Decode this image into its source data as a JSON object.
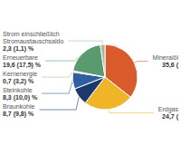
{
  "chart_data": {
    "type": "pie",
    "categories": [
      "Mineralöl",
      "Erdgas",
      "Braunkohle",
      "Steinkohle",
      "Kernenergie",
      "Erneuerbare",
      "Strom einschließlich\nStromaustauschsaldo"
    ],
    "values": [
      35.6,
      24.7,
      8.7,
      8.3,
      0.7,
      19.6,
      2.3
    ],
    "value_labels": [
      "35,6 (",
      "24,7 (",
      "8,7 (9,8) %",
      "8,3 (10,0) %",
      "0,7 (3,2) %",
      "19,6 (17,5) %",
      "2,3 (1,1) %"
    ],
    "colors": [
      "#D95B2B",
      "#F0B429",
      "#1B3A6B",
      "#2E5FA3",
      "#B8B89A",
      "#5A9A6F",
      "#A8B8A0"
    ],
    "data_labels": true
  }
}
